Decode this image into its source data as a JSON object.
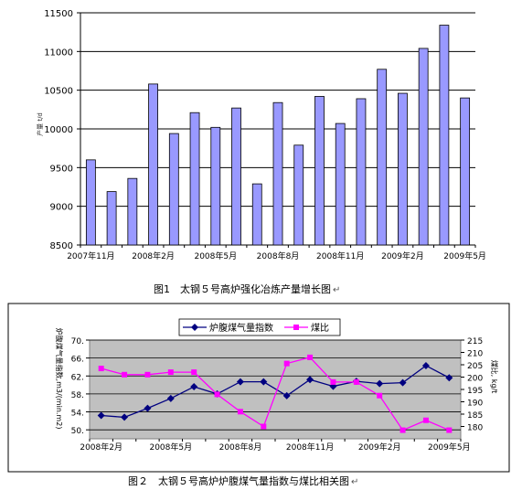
{
  "figure1": {
    "caption": "图1　太钢５号高炉强化冶炼产量增长图",
    "para_mark": "↵",
    "ylabel": "产量 t/d",
    "chart_data": {
      "type": "bar",
      "title": "",
      "xlabel": "",
      "ylabel": "产量 t/d",
      "ylim": [
        8500,
        11500
      ],
      "yticks": [
        8500,
        9000,
        9500,
        10000,
        10500,
        11000,
        11500
      ],
      "xtick_labels": [
        "2007年11月",
        "2008年2月",
        "2008年5月",
        "2008年8月",
        "2008年11月",
        "2009年2月",
        "2009年5月"
      ],
      "xtick_positions": [
        0,
        3,
        6,
        9,
        12,
        15,
        18
      ],
      "values": [
        9600,
        9190,
        9360,
        10580,
        9940,
        10210,
        10020,
        10270,
        9290,
        10340,
        9790,
        10420,
        10070,
        10390,
        10770,
        10460,
        11040,
        11340,
        10400
      ],
      "grid": true,
      "bar_color": "#9999ff"
    }
  },
  "figure2": {
    "caption": "图２　太钢５号高炉炉腹煤气量指数与煤比相关图",
    "para_mark": "↵",
    "chart_data": {
      "type": "line",
      "title": "",
      "xlabel": "",
      "ylabel": "炉腹煤气量指数,m3/(min.m2)",
      "ylabel2": "煤比, kg/t",
      "ylim": [
        48,
        70
      ],
      "yticks": [
        50,
        54,
        58,
        62,
        66,
        70
      ],
      "ytick_labels": [
        "50.",
        "54.",
        "58.",
        "62.",
        "66.",
        "70."
      ],
      "y2lim": [
        175,
        215
      ],
      "y2ticks": [
        180,
        185,
        190,
        195,
        200,
        205,
        210,
        215
      ],
      "xtick_labels": [
        "2008年2月",
        "2008年5月",
        "2008年8月",
        "2008年11月",
        "2009年2月",
        "2009年5月"
      ],
      "xtick_positions": [
        0,
        3,
        6,
        9,
        12,
        15
      ],
      "legend_position": "top",
      "background_color": "#c0c0c0",
      "grid": true,
      "series": [
        {
          "name": "炉腹煤气量指数",
          "axis": "left",
          "color": "#000080",
          "marker": "diamond",
          "values": [
            53.2,
            52.8,
            54.8,
            57.0,
            59.6,
            58.0,
            60.7,
            60.7,
            57.6,
            61.2,
            59.7,
            60.8,
            60.3,
            60.5,
            64.3,
            61.6
          ]
        },
        {
          "name": "煤比",
          "axis": "right",
          "color": "#ff00ff",
          "marker": "square",
          "values": [
            203.5,
            201.0,
            201.0,
            202.0,
            202.0,
            193.0,
            186.0,
            180.0,
            205.5,
            208.0,
            198.0,
            198.0,
            192.5,
            178.5,
            182.5,
            178.5
          ]
        }
      ]
    }
  }
}
